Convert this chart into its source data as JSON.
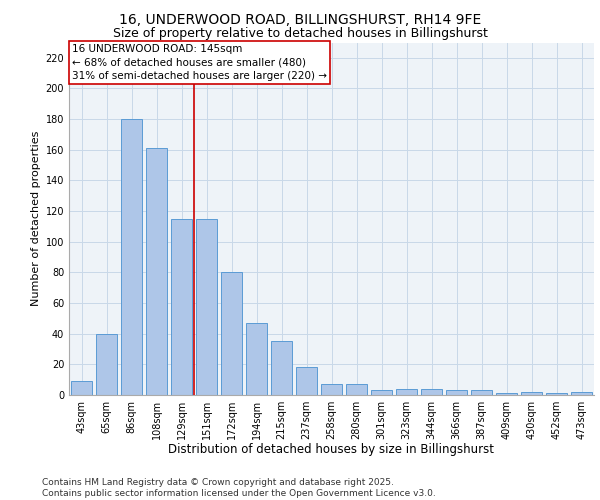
{
  "title1": "16, UNDERWOOD ROAD, BILLINGSHURST, RH14 9FE",
  "title2": "Size of property relative to detached houses in Billingshurst",
  "xlabel": "Distribution of detached houses by size in Billingshurst",
  "ylabel": "Number of detached properties",
  "categories": [
    "43sqm",
    "65sqm",
    "86sqm",
    "108sqm",
    "129sqm",
    "151sqm",
    "172sqm",
    "194sqm",
    "215sqm",
    "237sqm",
    "258sqm",
    "280sqm",
    "301sqm",
    "323sqm",
    "344sqm",
    "366sqm",
    "387sqm",
    "409sqm",
    "430sqm",
    "452sqm",
    "473sqm"
  ],
  "values": [
    9,
    40,
    180,
    161,
    115,
    115,
    80,
    47,
    35,
    18,
    7,
    7,
    3,
    4,
    4,
    3,
    3,
    1,
    2,
    1,
    2
  ],
  "bar_color": "#aec6e8",
  "bar_edge_color": "#5b9bd5",
  "grid_color": "#c8d8e8",
  "bg_color": "#eef3f8",
  "annotation_box_color": "#cc0000",
  "vline_color": "#cc0000",
  "vline_x": 4.5,
  "annotation_lines": [
    "16 UNDERWOOD ROAD: 145sqm",
    "← 68% of detached houses are smaller (480)",
    "31% of semi-detached houses are larger (220) →"
  ],
  "ylim": [
    0,
    230
  ],
  "yticks": [
    0,
    20,
    40,
    60,
    80,
    100,
    120,
    140,
    160,
    180,
    200,
    220
  ],
  "footer": "Contains HM Land Registry data © Crown copyright and database right 2025.\nContains public sector information licensed under the Open Government Licence v3.0.",
  "title1_fontsize": 10,
  "title2_fontsize": 9,
  "xlabel_fontsize": 8.5,
  "ylabel_fontsize": 8,
  "tick_fontsize": 7,
  "footer_fontsize": 6.5,
  "ann_fontsize": 7.5
}
